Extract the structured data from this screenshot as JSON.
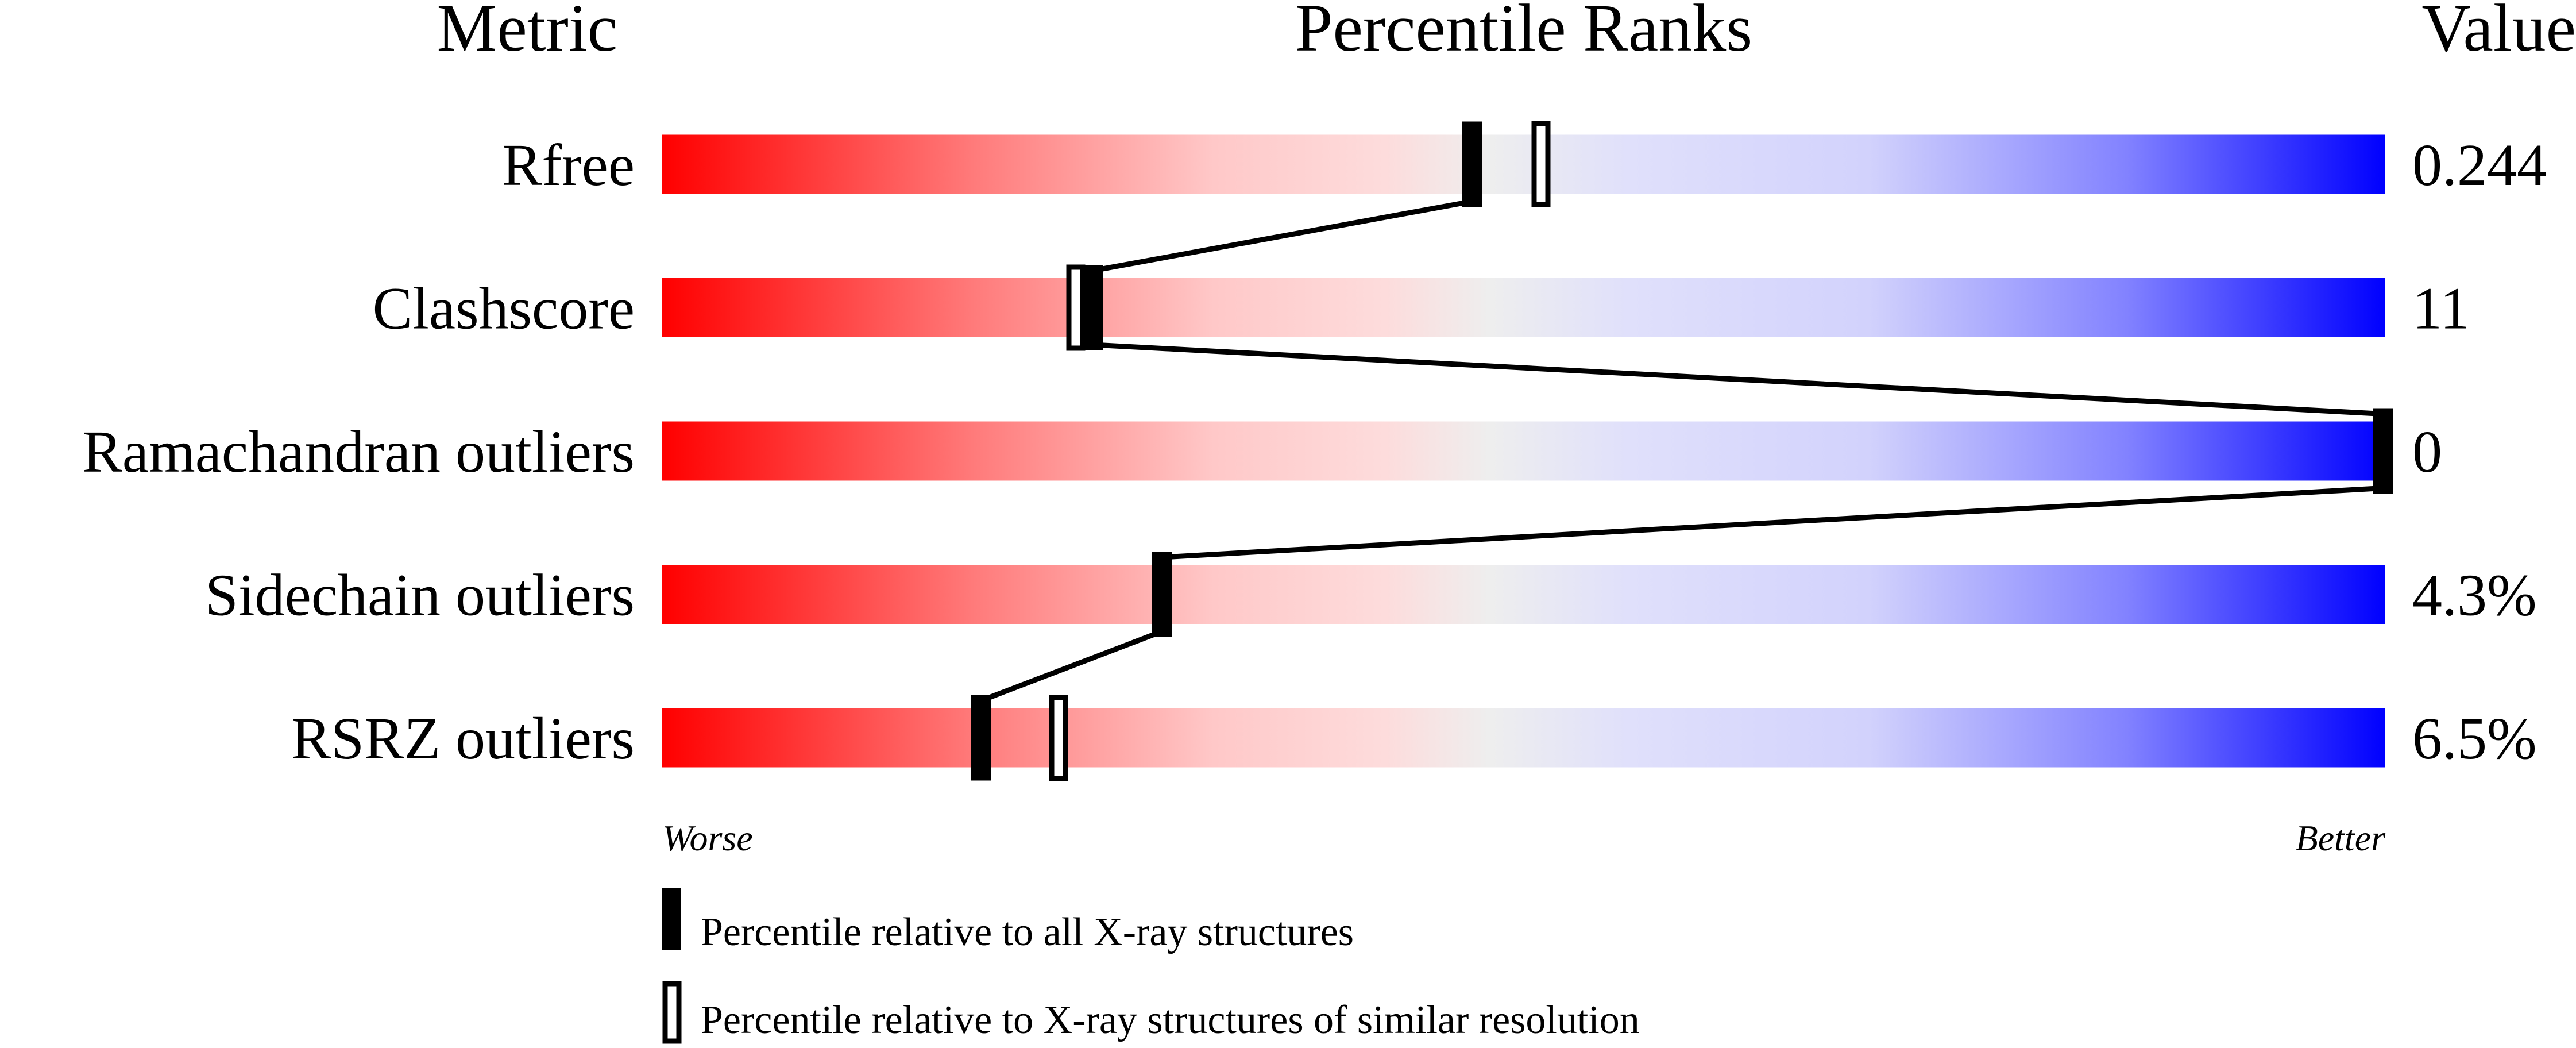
{
  "chart_data": {
    "type": "percentile-bar",
    "headers": {
      "metric": "Metric",
      "ranks": "Percentile Ranks",
      "value": "Value"
    },
    "xlim": [
      0,
      100
    ],
    "axis": {
      "worse": "Worse",
      "better": "Better"
    },
    "gradient_colors": {
      "worse": "#ff0000",
      "middle": "#eeeeee",
      "better": "#0000ff"
    },
    "metrics": [
      {
        "name": "Rfree",
        "value": "0.244",
        "percentile_all": 47,
        "percentile_similar": 51
      },
      {
        "name": "Clashscore",
        "value": "11",
        "percentile_all": 25,
        "percentile_similar": 24
      },
      {
        "name": "Ramachandran outliers",
        "value": "0",
        "percentile_all": 100,
        "percentile_similar": null
      },
      {
        "name": "Sidechain outliers",
        "value": "4.3%",
        "percentile_all": 29,
        "percentile_similar": null
      },
      {
        "name": "RSRZ outliers",
        "value": "6.5%",
        "percentile_all": 18.5,
        "percentile_similar": 23
      }
    ],
    "legend": {
      "all": "Percentile relative to all X-ray structures",
      "similar": "Percentile relative to X-ray structures of similar resolution"
    }
  }
}
